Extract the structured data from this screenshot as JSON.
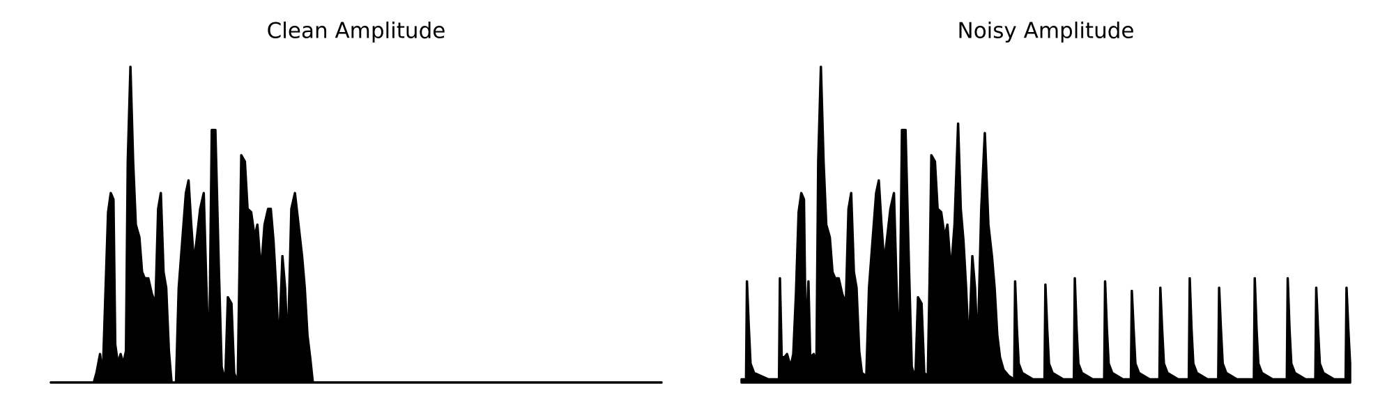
{
  "chart_data": [
    {
      "type": "area",
      "title": "Clean Amplitude",
      "color": "#000000",
      "xlim": [
        0,
        683
      ],
      "ylim": [
        0,
        1
      ],
      "x": [
        0,
        48,
        51,
        55,
        58,
        61,
        64,
        67,
        70,
        72,
        75,
        78,
        81,
        84,
        86,
        89,
        92,
        95,
        99,
        102,
        105,
        109,
        113,
        117,
        120,
        123,
        126,
        129,
        132,
        135,
        140,
        143,
        147,
        151,
        154,
        157,
        160,
        163,
        167,
        171,
        174,
        177,
        180,
        184,
        188,
        191,
        195,
        198,
        202,
        205,
        209,
        213,
        217,
        220,
        224,
        228,
        231,
        235,
        239,
        243,
        246,
        249,
        252,
        255,
        259,
        262,
        265,
        269,
        273,
        277,
        281,
        284,
        287,
        290,
        293,
        683
      ],
      "values": [
        0,
        0,
        0.03,
        0.09,
        0.02,
        0.28,
        0.54,
        0.6,
        0.58,
        0.12,
        0.06,
        0.09,
        0.06,
        0.1,
        0.7,
        1.0,
        0.7,
        0.5,
        0.46,
        0.35,
        0.33,
        0.33,
        0.28,
        0.25,
        0.55,
        0.6,
        0.35,
        0.3,
        0.1,
        0,
        0,
        0.3,
        0.45,
        0.6,
        0.64,
        0.5,
        0.38,
        0.45,
        0.55,
        0.6,
        0.3,
        0.05,
        0.8,
        0.8,
        0.35,
        0.05,
        0,
        0.27,
        0.25,
        0.03,
        0,
        0.72,
        0.7,
        0.55,
        0.54,
        0.46,
        0.5,
        0.35,
        0.5,
        0.55,
        0.55,
        0.45,
        0.3,
        0.1,
        0.4,
        0.3,
        0.1,
        0.55,
        0.6,
        0.5,
        0.4,
        0.3,
        0.15,
        0.08,
        0,
        0
      ]
    },
    {
      "type": "area",
      "title": "Noisy Amplitude",
      "color": "#000000",
      "xlim": [
        0,
        683
      ],
      "ylim": [
        0,
        1
      ],
      "x": [
        0,
        5,
        6,
        8,
        10,
        14,
        30,
        42,
        43,
        45,
        48,
        51,
        55,
        58,
        61,
        64,
        67,
        70,
        72,
        75,
        77,
        81,
        84,
        86,
        89,
        92,
        95,
        99,
        102,
        105,
        109,
        113,
        117,
        120,
        123,
        126,
        129,
        132,
        135,
        140,
        143,
        147,
        151,
        154,
        157,
        160,
        163,
        167,
        171,
        174,
        177,
        180,
        184,
        188,
        191,
        195,
        198,
        202,
        205,
        209,
        211,
        213,
        217,
        220,
        224,
        228,
        231,
        235,
        239,
        243,
        246,
        249,
        252,
        255,
        259,
        262,
        265,
        269,
        273,
        277,
        281,
        284,
        287,
        290,
        294,
        300,
        306,
        307,
        309,
        311,
        315,
        327,
        340,
        341,
        343,
        345,
        349,
        361,
        373,
        374,
        376,
        378,
        382,
        394,
        407,
        408,
        410,
        412,
        416,
        428,
        437,
        438,
        440,
        442,
        446,
        458,
        469,
        470,
        472,
        474,
        478,
        490,
        502,
        503,
        505,
        507,
        511,
        523,
        535,
        536,
        538,
        540,
        544,
        556,
        575,
        576,
        578,
        580,
        584,
        596,
        612,
        613,
        615,
        617,
        621,
        633,
        644,
        645,
        647,
        649,
        653,
        665,
        678,
        679,
        681,
        683
      ],
      "values": [
        0.01,
        0.01,
        0.32,
        0.18,
        0.06,
        0.03,
        0.01,
        0.01,
        0.33,
        0.08,
        0.08,
        0.09,
        0.05,
        0.09,
        0.28,
        0.54,
        0.6,
        0.58,
        0.12,
        0.32,
        0.08,
        0.09,
        0.06,
        0.7,
        1.0,
        0.7,
        0.5,
        0.46,
        0.35,
        0.33,
        0.33,
        0.28,
        0.25,
        0.55,
        0.6,
        0.35,
        0.3,
        0.1,
        0.03,
        0.02,
        0.3,
        0.45,
        0.6,
        0.64,
        0.5,
        0.38,
        0.45,
        0.55,
        0.6,
        0.3,
        0.05,
        0.8,
        0.8,
        0.35,
        0.05,
        0.01,
        0.27,
        0.25,
        0.03,
        0.02,
        0.32,
        0.72,
        0.7,
        0.55,
        0.54,
        0.46,
        0.5,
        0.35,
        0.5,
        0.82,
        0.55,
        0.45,
        0.3,
        0.1,
        0.4,
        0.3,
        0.1,
        0.55,
        0.79,
        0.5,
        0.4,
        0.3,
        0.15,
        0.08,
        0.04,
        0.02,
        0.01,
        0.32,
        0.17,
        0.06,
        0.03,
        0.01,
        0.01,
        0.31,
        0.17,
        0.06,
        0.03,
        0.01,
        0.01,
        0.33,
        0.17,
        0.06,
        0.03,
        0.01,
        0.01,
        0.32,
        0.17,
        0.06,
        0.03,
        0.01,
        0.01,
        0.29,
        0.17,
        0.06,
        0.03,
        0.01,
        0.01,
        0.3,
        0.17,
        0.06,
        0.03,
        0.01,
        0.01,
        0.33,
        0.17,
        0.06,
        0.03,
        0.01,
        0.01,
        0.3,
        0.17,
        0.06,
        0.03,
        0.01,
        0.01,
        0.33,
        0.17,
        0.06,
        0.03,
        0.01,
        0.01,
        0.33,
        0.17,
        0.06,
        0.03,
        0.01,
        0.01,
        0.3,
        0.17,
        0.06,
        0.03,
        0.01,
        0.01,
        0.3,
        0.17,
        0.06
      ]
    }
  ]
}
